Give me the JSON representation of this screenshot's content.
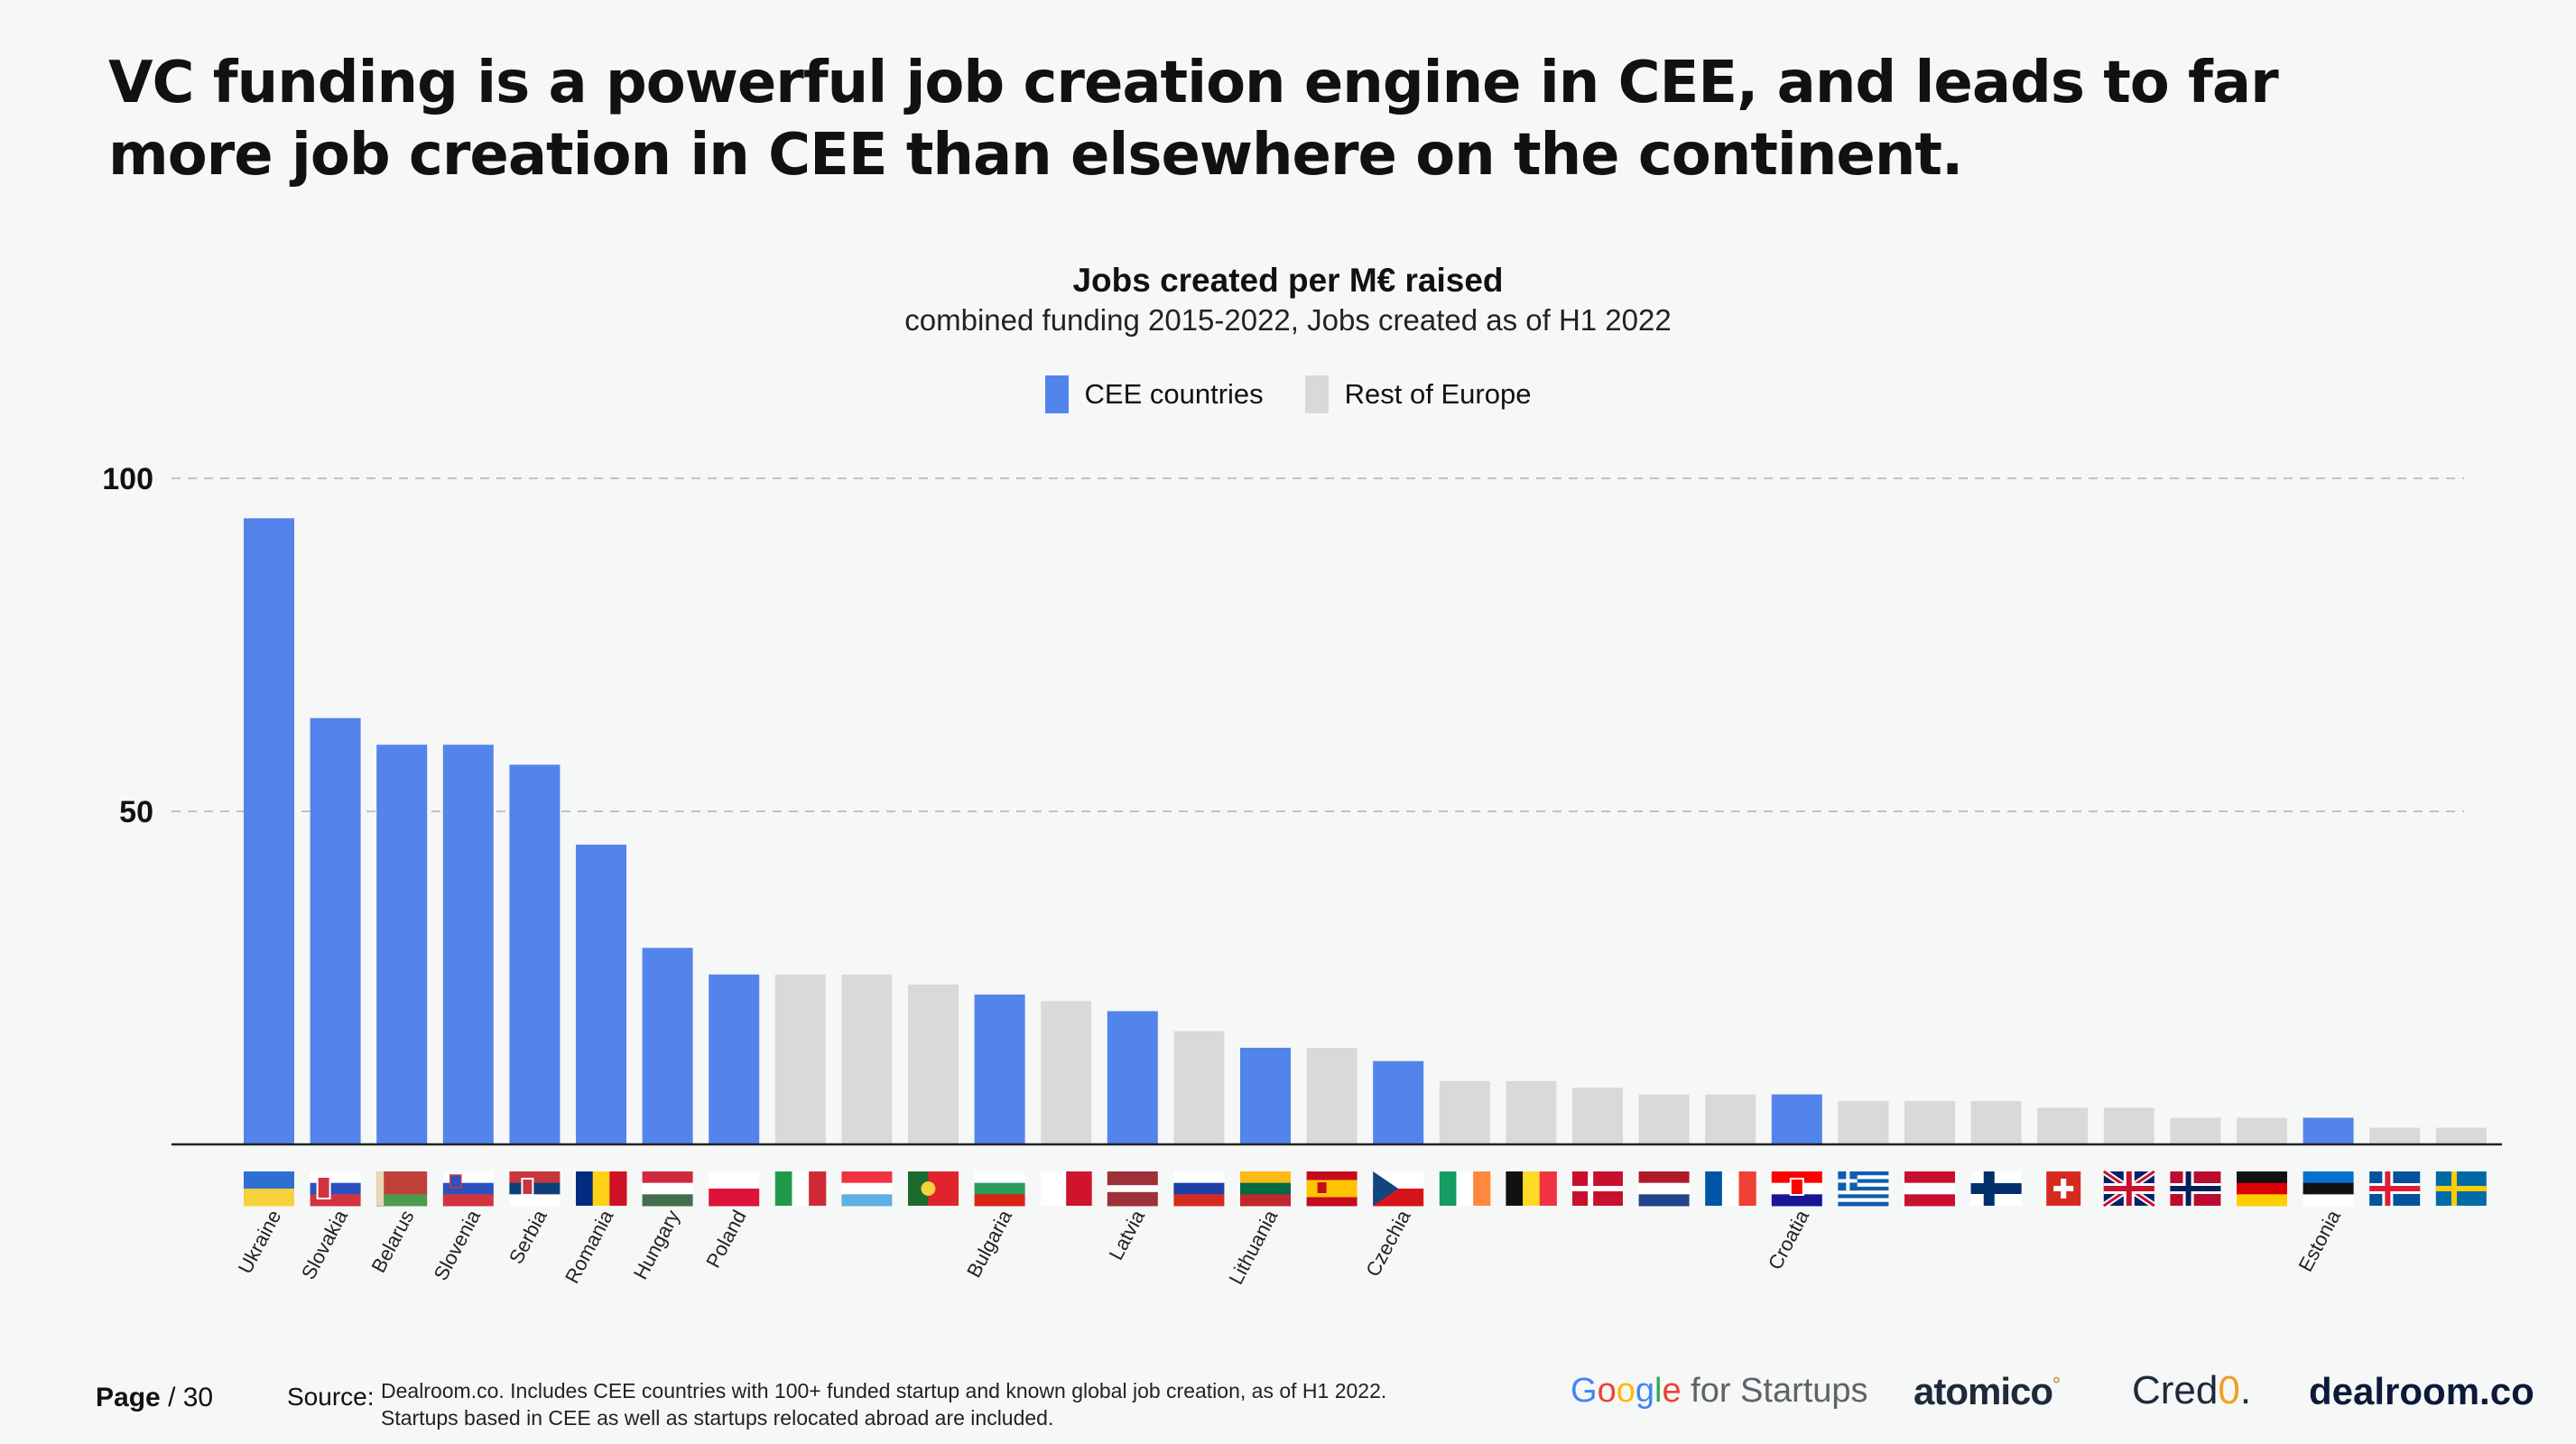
{
  "headline": "VC funding is a powerful job creation engine in CEE, and leads to far more job creation in CEE than elsewhere on the continent.",
  "colors": {
    "cee": "#5284eb",
    "rest": "#d8d9d8",
    "grid": "#bfc3c4",
    "axis": "#222222"
  },
  "legend": {
    "cee": "CEE countries",
    "rest": "Rest of Europe"
  },
  "chart_data": {
    "type": "bar",
    "title": "Jobs created per M€ raised",
    "subtitle": "combined funding 2015-2022, Jobs created as of H1 2022",
    "xlabel": "",
    "ylabel": "",
    "ylim": [
      0,
      100
    ],
    "yticks": [
      50,
      100
    ],
    "grid": true,
    "legend_position": "top-center",
    "series": [
      {
        "name": "CEE countries",
        "key": "cee"
      },
      {
        "name": "Rest of Europe",
        "key": "rest"
      }
    ],
    "bars": [
      {
        "label": "Ukraine",
        "value": 94,
        "group": "cee",
        "flag": "ua"
      },
      {
        "label": "Slovakia",
        "value": 64,
        "group": "cee",
        "flag": "sk"
      },
      {
        "label": "Belarus",
        "value": 60,
        "group": "cee",
        "flag": "by"
      },
      {
        "label": "Slovenia",
        "value": 60,
        "group": "cee",
        "flag": "si"
      },
      {
        "label": "Serbia",
        "value": 57,
        "group": "cee",
        "flag": "rs"
      },
      {
        "label": "Romania",
        "value": 45,
        "group": "cee",
        "flag": "ro"
      },
      {
        "label": "Hungary",
        "value": 29.5,
        "group": "cee",
        "flag": "hu"
      },
      {
        "label": "Poland",
        "value": 25.5,
        "group": "cee",
        "flag": "pl"
      },
      {
        "label": "",
        "value": 25.5,
        "group": "rest",
        "flag": "it"
      },
      {
        "label": "",
        "value": 25.5,
        "group": "rest",
        "flag": "lu"
      },
      {
        "label": "",
        "value": 24,
        "group": "rest",
        "flag": "pt"
      },
      {
        "label": "Bulgaria",
        "value": 22.5,
        "group": "cee",
        "flag": "bg"
      },
      {
        "label": "",
        "value": 21.5,
        "group": "rest",
        "flag": "mt"
      },
      {
        "label": "Latvia",
        "value": 20,
        "group": "cee",
        "flag": "lv"
      },
      {
        "label": "",
        "value": 17,
        "group": "rest",
        "flag": "ru"
      },
      {
        "label": "Lithuania",
        "value": 14.5,
        "group": "cee",
        "flag": "lt"
      },
      {
        "label": "",
        "value": 14.5,
        "group": "rest",
        "flag": "es"
      },
      {
        "label": "Czechia",
        "value": 12.5,
        "group": "cee",
        "flag": "cz"
      },
      {
        "label": "",
        "value": 9.5,
        "group": "rest",
        "flag": "ie"
      },
      {
        "label": "",
        "value": 9.5,
        "group": "rest",
        "flag": "be"
      },
      {
        "label": "",
        "value": 8.5,
        "group": "rest",
        "flag": "dk"
      },
      {
        "label": "",
        "value": 7.5,
        "group": "rest",
        "flag": "nl"
      },
      {
        "label": "",
        "value": 7.5,
        "group": "rest",
        "flag": "fr"
      },
      {
        "label": "Croatia",
        "value": 7.5,
        "group": "cee",
        "flag": "hr"
      },
      {
        "label": "",
        "value": 6.5,
        "group": "rest",
        "flag": "gr"
      },
      {
        "label": "",
        "value": 6.5,
        "group": "rest",
        "flag": "at"
      },
      {
        "label": "",
        "value": 6.5,
        "group": "rest",
        "flag": "fi"
      },
      {
        "label": "",
        "value": 5.5,
        "group": "rest",
        "flag": "ch"
      },
      {
        "label": "",
        "value": 5.5,
        "group": "rest",
        "flag": "gb"
      },
      {
        "label": "",
        "value": 4,
        "group": "rest",
        "flag": "no"
      },
      {
        "label": "",
        "value": 4,
        "group": "rest",
        "flag": "de"
      },
      {
        "label": "Estonia",
        "value": 4,
        "group": "cee",
        "flag": "ee"
      },
      {
        "label": "",
        "value": 2.5,
        "group": "rest",
        "flag": "is"
      },
      {
        "label": "",
        "value": 2.5,
        "group": "rest",
        "flag": "se"
      }
    ]
  },
  "footer": {
    "page_label": "Page",
    "page_number": "/ 30",
    "source_label": "Source:",
    "source_line1": "Dealroom.co. Includes CEE countries with 100+ funded startup and known global job creation,  as of H1 2022.",
    "source_line2": "Startups based in CEE as well as startups relocated abroad are included."
  },
  "logos": {
    "google_letters": [
      "G",
      "o",
      "o",
      "g",
      "l",
      "e"
    ],
    "google_suffix": " for Startups",
    "atomico": "atomico",
    "atomico_mark": "°",
    "credo_prefix": "Cred",
    "credo_accent": "0",
    "credo_suffix": ".",
    "dealroom": "dealroom.co"
  }
}
